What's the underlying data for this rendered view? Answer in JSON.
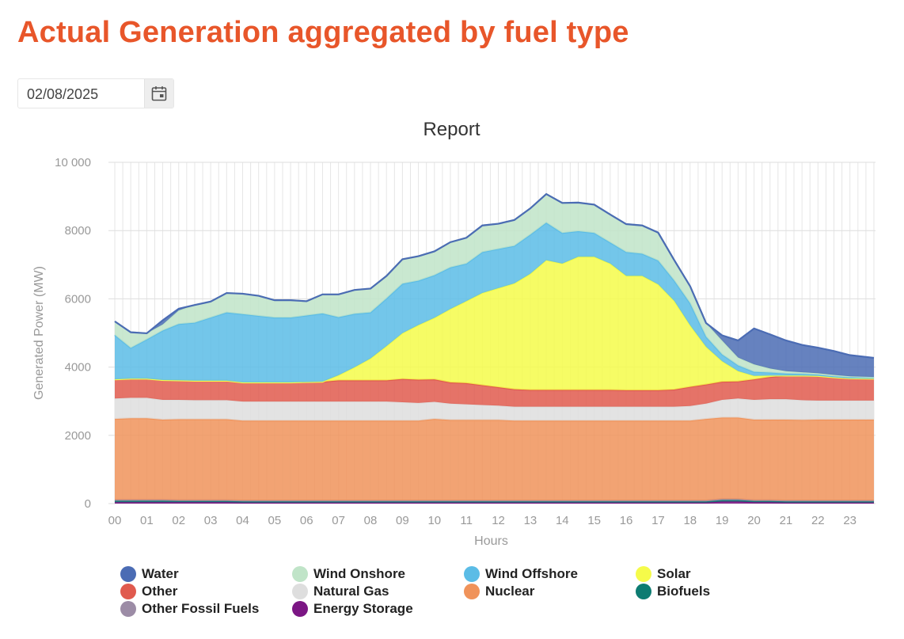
{
  "page": {
    "title": "Actual Generation aggregated by fuel type"
  },
  "date_picker": {
    "value": "02/08/2025",
    "icon": "calendar-icon"
  },
  "chart_data": {
    "type": "area",
    "stacked": true,
    "title": "Report",
    "xlabel": "Hours",
    "ylabel": "Generated Power (MW)",
    "ylim": [
      0,
      10000
    ],
    "yticks": [
      0,
      2000,
      4000,
      6000,
      8000,
      10000
    ],
    "ytick_labels": [
      "0",
      "2000",
      "4000",
      "6000",
      "8000",
      "10 000"
    ],
    "xtick_labels": [
      "00",
      "01",
      "02",
      "03",
      "04",
      "05",
      "06",
      "07",
      "08",
      "09",
      "10",
      "11",
      "12",
      "13",
      "14",
      "15",
      "16",
      "17",
      "18",
      "19",
      "20",
      "21",
      "22",
      "23"
    ],
    "x": [
      0,
      0.5,
      1,
      1.5,
      2,
      2.5,
      3,
      3.5,
      4,
      4.5,
      5,
      5.5,
      6,
      6.5,
      7,
      7.5,
      8,
      8.5,
      9,
      9.5,
      10,
      10.5,
      11,
      11.5,
      12,
      12.5,
      13,
      13.5,
      14,
      14.5,
      15,
      15.5,
      16,
      16.5,
      17,
      17.5,
      18,
      18.5,
      19,
      19.5,
      20,
      20.5,
      21,
      21.5,
      22,
      22.5,
      23,
      23.75
    ],
    "series": [
      {
        "name": "Energy Storage",
        "color": "#7b1684",
        "values": [
          40,
          40,
          40,
          40,
          40,
          40,
          40,
          40,
          30,
          30,
          30,
          30,
          30,
          30,
          30,
          30,
          30,
          30,
          30,
          30,
          30,
          30,
          30,
          30,
          30,
          30,
          30,
          30,
          30,
          30,
          30,
          30,
          30,
          30,
          30,
          30,
          30,
          30,
          60,
          60,
          40,
          40,
          30,
          30,
          30,
          30,
          30,
          30
        ]
      },
      {
        "name": "Biofuels",
        "color": "#0d7c72",
        "values": [
          60,
          60,
          60,
          60,
          50,
          50,
          50,
          50,
          50,
          50,
          50,
          50,
          50,
          50,
          50,
          50,
          50,
          50,
          50,
          50,
          50,
          50,
          50,
          50,
          50,
          50,
          50,
          50,
          50,
          50,
          50,
          50,
          50,
          50,
          50,
          50,
          50,
          50,
          60,
          60,
          50,
          50,
          50,
          50,
          50,
          50,
          50,
          50
        ]
      },
      {
        "name": "Other Fossil Fuels",
        "color": "#9c8ca6",
        "values": [
          10,
          10,
          10,
          10,
          10,
          10,
          10,
          10,
          10,
          10,
          10,
          10,
          10,
          10,
          10,
          10,
          10,
          10,
          10,
          10,
          10,
          10,
          10,
          10,
          10,
          10,
          10,
          10,
          10,
          10,
          10,
          10,
          10,
          10,
          10,
          10,
          10,
          10,
          10,
          10,
          10,
          10,
          10,
          10,
          10,
          10,
          10,
          10
        ]
      },
      {
        "name": "Nuclear",
        "color": "#f0935a",
        "values": [
          2370,
          2390,
          2390,
          2350,
          2370,
          2370,
          2370,
          2370,
          2340,
          2340,
          2340,
          2340,
          2340,
          2340,
          2340,
          2340,
          2340,
          2340,
          2340,
          2340,
          2390,
          2360,
          2360,
          2360,
          2360,
          2340,
          2340,
          2340,
          2340,
          2340,
          2340,
          2340,
          2340,
          2340,
          2340,
          2340,
          2340,
          2390,
          2390,
          2390,
          2360,
          2360,
          2370,
          2360,
          2370,
          2370,
          2370,
          2370
        ]
      },
      {
        "name": "Natural Gas",
        "color": "#dedede",
        "values": [
          600,
          600,
          600,
          580,
          570,
          560,
          560,
          560,
          560,
          560,
          560,
          560,
          560,
          560,
          560,
          560,
          560,
          560,
          540,
          520,
          500,
          480,
          460,
          440,
          420,
          410,
          410,
          410,
          410,
          410,
          410,
          410,
          410,
          410,
          410,
          410,
          430,
          450,
          520,
          560,
          580,
          600,
          600,
          580,
          560,
          560,
          560,
          560
        ]
      },
      {
        "name": "Other",
        "color": "#e05a4e",
        "values": [
          560,
          560,
          560,
          580,
          570,
          570,
          570,
          570,
          560,
          560,
          560,
          560,
          570,
          580,
          620,
          620,
          620,
          620,
          680,
          680,
          660,
          620,
          620,
          580,
          540,
          510,
          490,
          490,
          490,
          490,
          490,
          490,
          480,
          480,
          480,
          500,
          560,
          560,
          530,
          500,
          600,
          650,
          690,
          720,
          720,
          680,
          650,
          640
        ]
      },
      {
        "name": "Solar",
        "color": "#f5fb4a",
        "values": [
          0,
          0,
          0,
          0,
          0,
          0,
          0,
          0,
          0,
          0,
          0,
          0,
          0,
          0,
          150,
          380,
          640,
          1000,
          1340,
          1600,
          1800,
          2150,
          2400,
          2700,
          2900,
          3100,
          3400,
          3800,
          3700,
          3900,
          3900,
          3700,
          3350,
          3350,
          3100,
          2600,
          1800,
          1100,
          600,
          300,
          100,
          40,
          0,
          0,
          0,
          0,
          0,
          0
        ]
      },
      {
        "name": "Wind Offshore",
        "color": "#5bbce6",
        "values": [
          1300,
          900,
          1150,
          1450,
          1650,
          1700,
          1850,
          2000,
          2000,
          1950,
          1900,
          1900,
          1950,
          2000,
          1700,
          1570,
          1350,
          1400,
          1450,
          1300,
          1250,
          1220,
          1100,
          1200,
          1150,
          1100,
          1150,
          1100,
          900,
          750,
          700,
          620,
          700,
          650,
          700,
          600,
          650,
          300,
          200,
          170,
          120,
          90,
          60,
          50,
          40,
          30,
          30,
          30
        ]
      },
      {
        "name": "Wind Onshore",
        "color": "#c0e4c8",
        "values": [
          400,
          460,
          180,
          180,
          400,
          520,
          470,
          570,
          600,
          590,
          510,
          510,
          420,
          560,
          670,
          700,
          700,
          660,
          720,
          720,
          700,
          740,
          760,
          780,
          740,
          760,
          770,
          840,
          880,
          840,
          830,
          820,
          820,
          830,
          820,
          600,
          500,
          400,
          410,
          230,
          220,
          120,
          70,
          50,
          40,
          40,
          30,
          20
        ]
      },
      {
        "name": "Water",
        "color": "#4b6cb4",
        "values": [
          0,
          0,
          0,
          120,
          50,
          0,
          0,
          0,
          0,
          0,
          0,
          0,
          0,
          0,
          0,
          0,
          0,
          0,
          0,
          0,
          0,
          0,
          0,
          0,
          0,
          0,
          0,
          0,
          0,
          0,
          0,
          0,
          0,
          0,
          0,
          0,
          0,
          0,
          150,
          500,
          1050,
          1000,
          900,
          800,
          750,
          700,
          620,
          560
        ]
      }
    ],
    "legend": [
      {
        "name": "Water",
        "color": "#4b6cb4"
      },
      {
        "name": "Wind Onshore",
        "color": "#c0e4c8"
      },
      {
        "name": "Wind Offshore",
        "color": "#5bbce6"
      },
      {
        "name": "Solar",
        "color": "#f5fb4a"
      },
      {
        "name": "Other",
        "color": "#e05a4e"
      },
      {
        "name": "Natural Gas",
        "color": "#dedede"
      },
      {
        "name": "Nuclear",
        "color": "#f0935a"
      },
      {
        "name": "Biofuels",
        "color": "#0d7c72"
      },
      {
        "name": "Other Fossil Fuels",
        "color": "#9c8ca6"
      },
      {
        "name": "Energy Storage",
        "color": "#7b1684"
      }
    ]
  }
}
